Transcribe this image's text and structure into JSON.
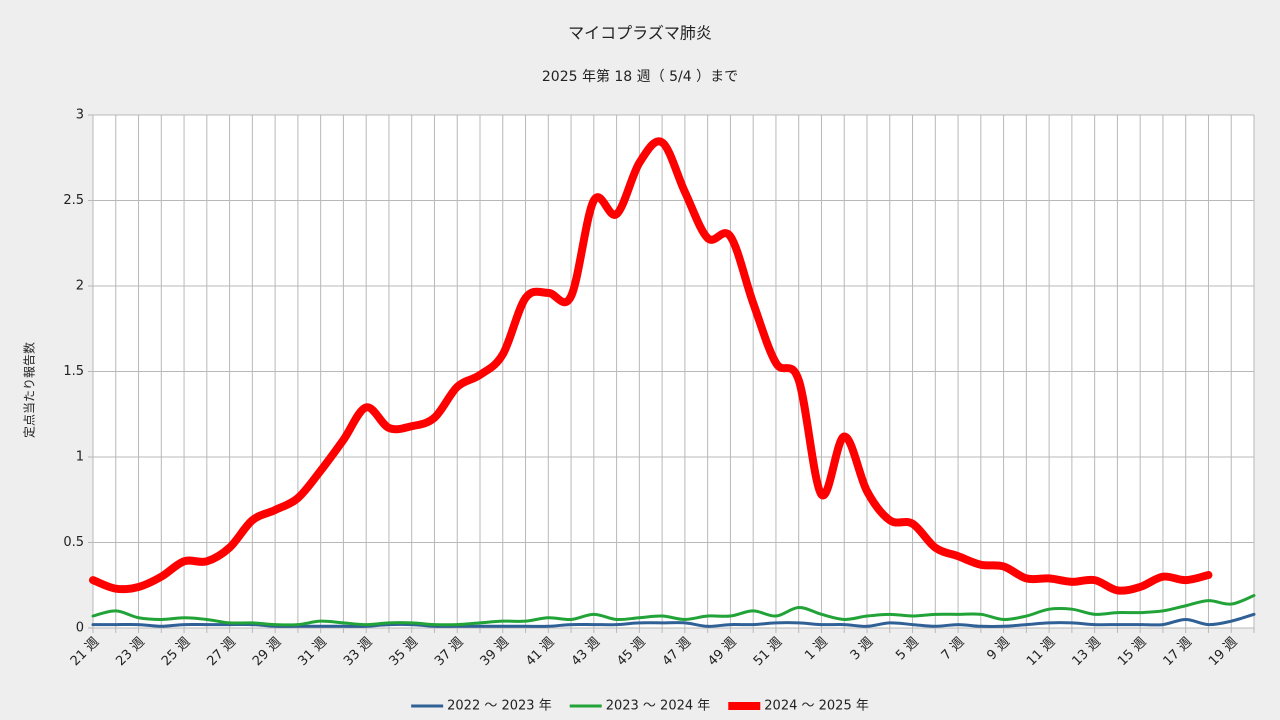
{
  "chart_data": {
    "type": "line",
    "title": "マイコプラズマ肺炎",
    "subtitle": "2025 年第 18 週（ 5/4 ）まで",
    "y_label": "定点当たり報告数",
    "categories": [
      "21 週",
      null,
      "23 週",
      null,
      "25 週",
      null,
      "27 週",
      null,
      "29 週",
      null,
      "31 週",
      null,
      "33 週",
      null,
      "35 週",
      null,
      "37 週",
      null,
      "39 週",
      null,
      "41 週",
      null,
      "43 週",
      null,
      "45 週",
      null,
      "47 週",
      null,
      "49 週",
      null,
      "51 週",
      null,
      "1 週",
      null,
      "3 週",
      null,
      "5 週",
      null,
      "7 週",
      null,
      "9 週",
      null,
      "11 週",
      null,
      "13 週",
      null,
      "15 週",
      null,
      "17 週",
      null,
      "19 週",
      null
    ],
    "ylim": [
      0,
      3
    ],
    "yticks": [
      0,
      0.5,
      1,
      1.5,
      2,
      2.5,
      3
    ],
    "grid": true,
    "legend": "bottom",
    "series": [
      {
        "name": "2022 ～ 2023 年",
        "color": "#2f6096",
        "width": 3,
        "values": [
          0.02,
          0.02,
          0.02,
          0.01,
          0.02,
          0.02,
          0.02,
          0.02,
          0.01,
          0.01,
          0.01,
          0.01,
          0.01,
          0.02,
          0.02,
          0.01,
          0.01,
          0.01,
          0.01,
          0.01,
          0.01,
          0.02,
          0.02,
          0.02,
          0.03,
          0.03,
          0.03,
          0.01,
          0.02,
          0.02,
          0.03,
          0.03,
          0.02,
          0.02,
          0.01,
          0.03,
          0.02,
          0.01,
          0.02,
          0.01,
          0.01,
          0.02,
          0.03,
          0.03,
          0.02,
          0.02,
          0.02,
          0.02,
          0.05,
          0.02,
          0.04,
          0.08
        ]
      },
      {
        "name": "2023 ～ 2024 年",
        "color": "#21a337",
        "width": 3,
        "values": [
          0.07,
          0.1,
          0.06,
          0.05,
          0.06,
          0.05,
          0.03,
          0.03,
          0.02,
          0.02,
          0.04,
          0.03,
          0.02,
          0.03,
          0.03,
          0.02,
          0.02,
          0.03,
          0.04,
          0.04,
          0.06,
          0.05,
          0.08,
          0.05,
          0.06,
          0.07,
          0.05,
          0.07,
          0.07,
          0.1,
          0.07,
          0.12,
          0.08,
          0.05,
          0.07,
          0.08,
          0.07,
          0.08,
          0.08,
          0.08,
          0.05,
          0.07,
          0.11,
          0.11,
          0.08,
          0.09,
          0.09,
          0.1,
          0.13,
          0.16,
          0.14,
          0.19
        ]
      },
      {
        "name": "2024 ～ 2025 年",
        "color": "#ff0000",
        "width": 8,
        "values": [
          0.28,
          0.23,
          0.24,
          0.3,
          0.39,
          0.39,
          0.47,
          0.63,
          0.69,
          0.76,
          0.92,
          1.1,
          1.29,
          1.17,
          1.18,
          1.23,
          1.41,
          1.48,
          1.6,
          1.93,
          1.96,
          1.94,
          2.5,
          2.42,
          2.72,
          2.84,
          2.55,
          2.28,
          2.29,
          1.9,
          1.55,
          1.45,
          0.78,
          1.12,
          0.8,
          0.63,
          0.61,
          0.47,
          0.42,
          0.37,
          0.36,
          0.29,
          0.29,
          0.27,
          0.28,
          0.22,
          0.24,
          0.3,
          0.28,
          0.31,
          null,
          null
        ]
      }
    ]
  }
}
